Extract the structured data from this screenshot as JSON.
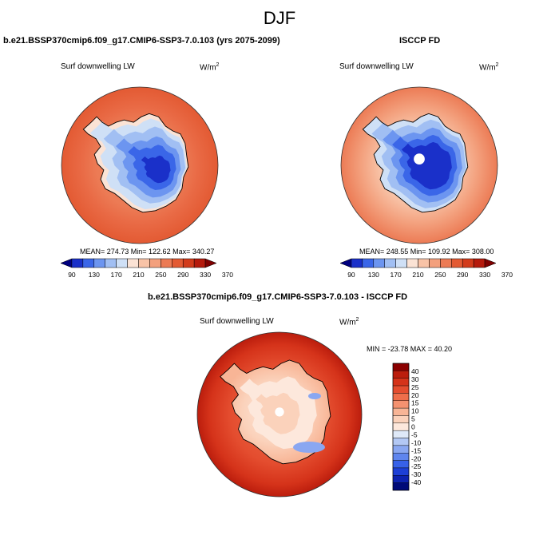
{
  "title": "DJF",
  "colors": {
    "abs_scale": [
      "#00007f",
      "#1a30c9",
      "#3a66e8",
      "#6c95f0",
      "#a1bff3",
      "#cfe0f6",
      "#fbe3d5",
      "#f8c3a7",
      "#f3a07d",
      "#ec7b55",
      "#e35a33",
      "#d23b1b",
      "#b51a0c",
      "#7f0000"
    ],
    "diff_scale": [
      "#000a78",
      "#0d22b0",
      "#1d3fd6",
      "#3761e8",
      "#5f85ee",
      "#8aa7f1",
      "#b3c8f4",
      "#dfe9f8",
      "#fde8dc",
      "#fbd2bb",
      "#f8b596",
      "#f49270",
      "#ee6e4b",
      "#e44d2f",
      "#d5331a",
      "#bb1d0d",
      "#8b0000"
    ],
    "pole_hole": "#ffffff",
    "coastline": "#000000"
  },
  "panels": {
    "model": {
      "title": "b.e21.BSSP370cmip6.f09_g17.CMIP6-SSP3-7.0.103 (yrs 2075-2099)",
      "variable": "Surf downwelling LW",
      "units_base": "W/m",
      "units_exp": "2",
      "stats": "MEAN= 274.73  Min= 122.62  Max= 340.27"
    },
    "obs": {
      "title": "ISCCP FD",
      "variable": "Surf downwelling LW",
      "units_base": "W/m",
      "units_exp": "2",
      "stats": "MEAN= 248.55  Min= 109.92  Max= 308.00"
    },
    "diff": {
      "title": "b.e21.BSSP370cmip6.f09_g17.CMIP6-SSP3-7.0.103 - ISCCP FD",
      "variable": "Surf downwelling LW",
      "units_base": "W/m",
      "units_exp": "2",
      "stats": "MIN = -23.78 MAX =  40.20"
    }
  },
  "chart_data": [
    {
      "type": "heatmap",
      "projection": "south-polar-stereographic",
      "title": "b.e21.BSSP370cmip6.f09_g17.CMIP6-SSP3-7.0.103 (yrs 2075-2099)",
      "variable": "Surf downwelling LW",
      "units": "W/m2",
      "mean": 274.73,
      "min": 122.62,
      "max": 340.27,
      "colorbar_ticks": [
        "90",
        "130",
        "170",
        "210",
        "250",
        "290",
        "330",
        "370"
      ],
      "colorbar_levels": [
        90,
        110,
        130,
        150,
        170,
        190,
        210,
        230,
        250,
        270,
        290,
        310,
        330,
        350,
        370
      ]
    },
    {
      "type": "heatmap",
      "projection": "south-polar-stereographic",
      "title": "ISCCP FD",
      "variable": "Surf downwelling LW",
      "units": "W/m2",
      "mean": 248.55,
      "min": 109.92,
      "max": 308.0,
      "colorbar_ticks": [
        "90",
        "130",
        "170",
        "210",
        "250",
        "290",
        "330",
        "370"
      ],
      "colorbar_levels": [
        90,
        110,
        130,
        150,
        170,
        190,
        210,
        230,
        250,
        270,
        290,
        310,
        330,
        350,
        370
      ]
    },
    {
      "type": "heatmap",
      "projection": "south-polar-stereographic",
      "title": "b.e21.BSSP370cmip6.f09_g17.CMIP6-SSP3-7.0.103 - ISCCP FD",
      "variable": "Surf downwelling LW",
      "units": "W/m2",
      "min": -23.78,
      "max": 40.2,
      "colorbar_ticks": [
        "40",
        "30",
        "25",
        "20",
        "15",
        "10",
        "5",
        "0",
        "-5",
        "-10",
        "-15",
        "-20",
        "-25",
        "-30",
        "-40"
      ]
    }
  ]
}
